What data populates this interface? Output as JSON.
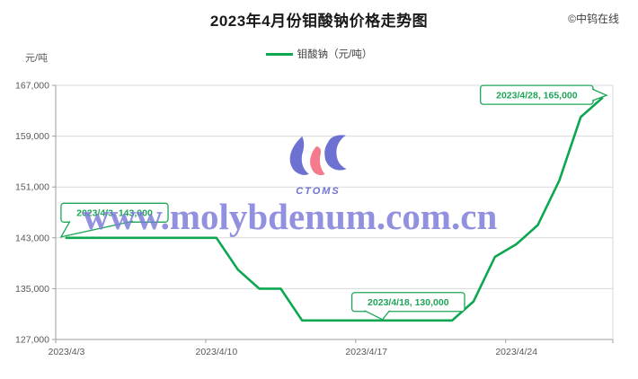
{
  "header": {
    "title": "2023年4月份钼酸钠价格走势图",
    "copyright": "©中钨在线"
  },
  "legend": {
    "label": "钼酸钠（元/吨）"
  },
  "y_axis_unit": "元/吨",
  "watermark": {
    "text": "www.molybdenum.com.cn",
    "logo_text": "CTOMS",
    "text_color": "#7b7ad8",
    "logo_blue": "#5a5ecc",
    "logo_red": "#f2697c"
  },
  "chart_data": {
    "type": "line",
    "title": "2023年4月份钼酸钠价格走势图",
    "series_name": "钼酸钠（元/吨）",
    "x": [
      "2023/4/3",
      "2023/4/4",
      "2023/4/5",
      "2023/4/6",
      "2023/4/7",
      "2023/4/8",
      "2023/4/9",
      "2023/4/10",
      "2023/4/11",
      "2023/4/12",
      "2023/4/13",
      "2023/4/14",
      "2023/4/15",
      "2023/4/16",
      "2023/4/17",
      "2023/4/18",
      "2023/4/19",
      "2023/4/20",
      "2023/4/21",
      "2023/4/22",
      "2023/4/23",
      "2023/4/24",
      "2023/4/25",
      "2023/4/26",
      "2023/4/27",
      "2023/4/28"
    ],
    "values": [
      143000,
      143000,
      143000,
      143000,
      143000,
      143000,
      143000,
      143000,
      138000,
      135000,
      135000,
      130000,
      130000,
      130000,
      130000,
      130000,
      130000,
      130000,
      130000,
      133000,
      140000,
      142000,
      145000,
      152000,
      162000,
      165000
    ],
    "ylim": [
      127000,
      167000
    ],
    "ytick_values": [
      127000,
      135000,
      143000,
      151000,
      159000,
      167000
    ],
    "ytick_labels": [
      "127,000",
      "135,000",
      "143,000",
      "151,000",
      "159,000",
      "167,000"
    ],
    "xtick_indices": [
      0,
      7,
      14,
      21
    ],
    "xtick_labels": [
      "2023/4/3",
      "2023/4/10",
      "2023/4/17",
      "2023/4/24"
    ],
    "xtick_interval": 7,
    "ylabel": "元/吨",
    "grid": true,
    "legend_position": "top",
    "line_color": "#0ca750",
    "annotation_color": "#1ea558",
    "grid_color": "#d9d9d9",
    "axis_color": "#9e9e9e",
    "tick_label_color": "#595959",
    "annotations": [
      {
        "text": "2023/4/3, 143,000",
        "index": 0,
        "value": 143000,
        "placement": "above-right"
      },
      {
        "text": "2023/4/18, 130,000",
        "index": 15,
        "value": 130000,
        "placement": "above"
      },
      {
        "text": "2023/4/28, 165,000",
        "index": 25,
        "value": 165000,
        "placement": "left"
      }
    ]
  }
}
